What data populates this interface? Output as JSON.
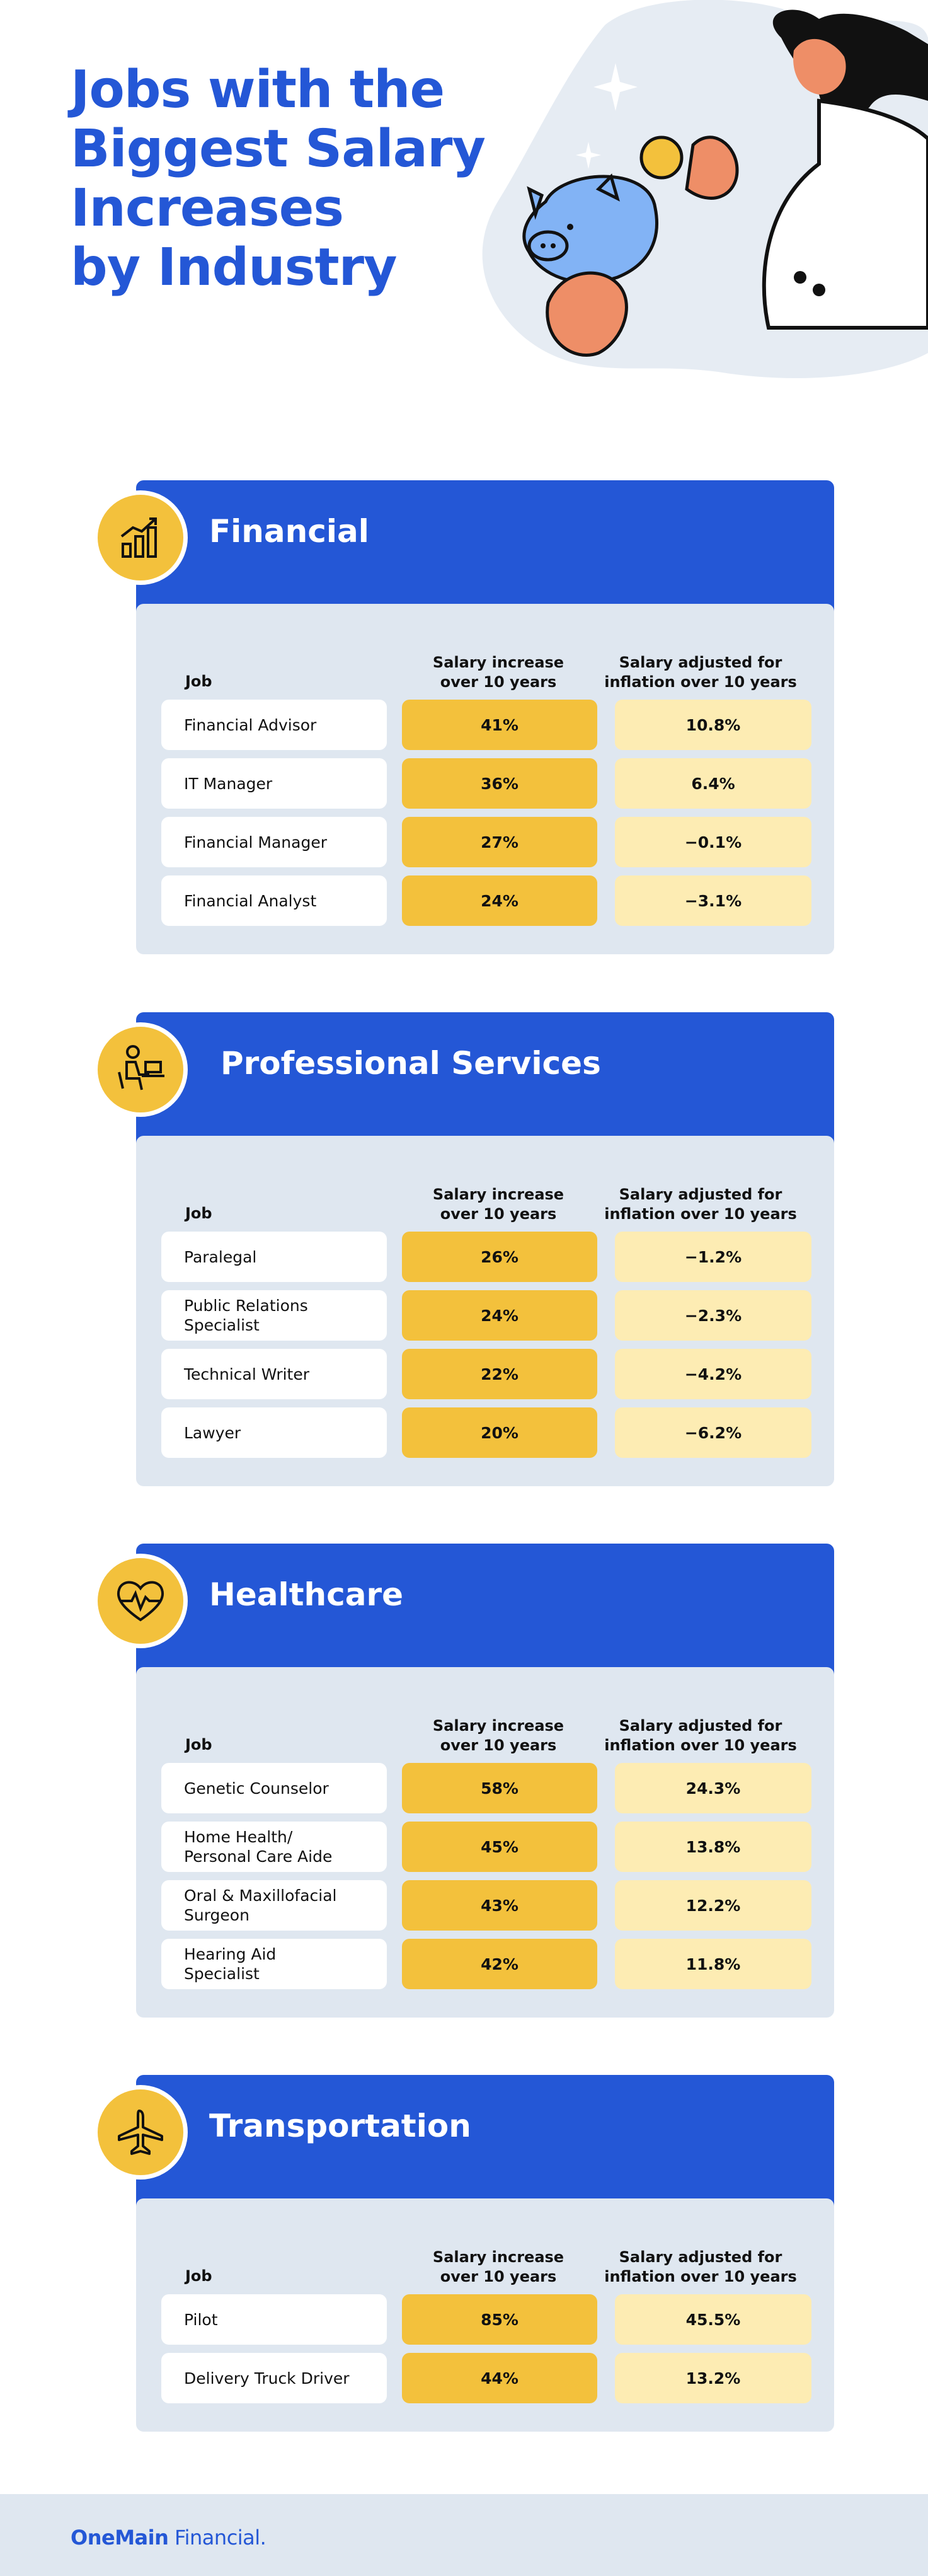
{
  "title": {
    "line1": "Jobs with the",
    "line2": "Biggest Salary",
    "line3": "Increases",
    "line4": "by Industry"
  },
  "columns": {
    "job": "Job",
    "increase_line1": "Salary increase",
    "increase_line2": "over 10 years",
    "adjusted_line1": "Salary adjusted for",
    "adjusted_line2": "inflation over 10 years"
  },
  "colors": {
    "brand_blue": "#2457d6",
    "panel_gray": "#dfe7f0",
    "increase_yellow": "#f3c13c",
    "adjusted_yellow": "#fdecb3"
  },
  "sections": [
    {
      "name": "Financial",
      "icon": "growth-chart-icon",
      "rows": [
        {
          "job": "Financial Advisor",
          "increase": "41%",
          "adjusted": "10.8%"
        },
        {
          "job": "IT Manager",
          "increase": "36%",
          "adjusted": "6.4%"
        },
        {
          "job": "Financial Manager",
          "increase": "27%",
          "adjusted": "−0.1%"
        },
        {
          "job": "Financial Analyst",
          "increase": "24%",
          "adjusted": "−3.1%"
        }
      ]
    },
    {
      "name": "Professional Services",
      "icon": "person-at-laptop-icon",
      "rows": [
        {
          "job": "Paralegal",
          "increase": "26%",
          "adjusted": "−1.2%"
        },
        {
          "job_line1": "Public Relations",
          "job_line2": "Specialist",
          "increase": "24%",
          "adjusted": "−2.3%"
        },
        {
          "job": "Technical Writer",
          "increase": "22%",
          "adjusted": "−4.2%"
        },
        {
          "job": "Lawyer",
          "increase": "20%",
          "adjusted": "−6.2%"
        }
      ]
    },
    {
      "name": "Healthcare",
      "icon": "heartbeat-icon",
      "rows": [
        {
          "job": "Genetic Counselor",
          "increase": "58%",
          "adjusted": "24.3%"
        },
        {
          "job_line1": "Home Health/",
          "job_line2": "Personal Care Aide",
          "increase": "45%",
          "adjusted": "13.8%"
        },
        {
          "job_line1": "Oral & Maxillofacial",
          "job_line2": "Surgeon",
          "increase": "43%",
          "adjusted": "12.2%"
        },
        {
          "job_line1": "Hearing Aid",
          "job_line2": "Specialist",
          "increase": "42%",
          "adjusted": "11.8%"
        }
      ]
    },
    {
      "name": "Transportation",
      "icon": "airplane-icon",
      "rows": [
        {
          "job": "Pilot",
          "increase": "85%",
          "adjusted": "45.5%"
        },
        {
          "job": "Delivery Truck Driver",
          "increase": "44%",
          "adjusted": "13.2%"
        }
      ]
    }
  ],
  "footer": {
    "brand_bold": "OneMain",
    "brand_rest": " Financial."
  }
}
